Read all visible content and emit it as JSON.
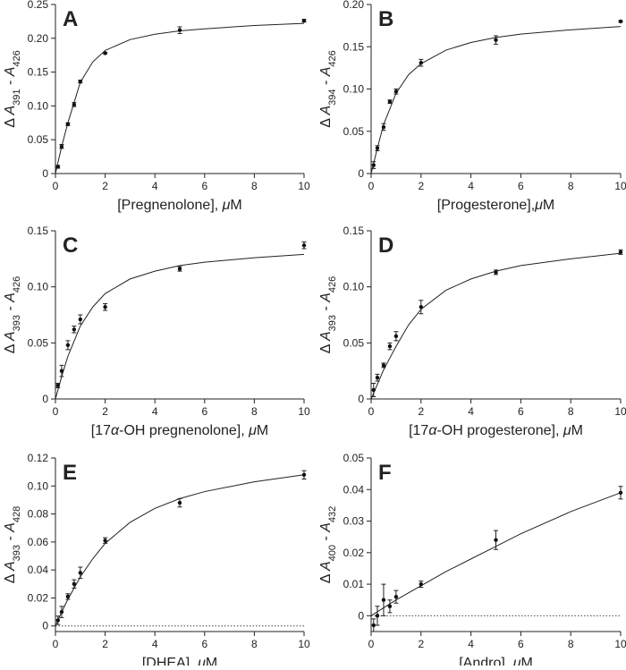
{
  "chart_data": [
    {
      "type": "scatter",
      "label": "A",
      "xlabel": [
        {
          "text": "[Pregnenolone], "
        },
        {
          "text": "μ",
          "italic": true
        },
        {
          "text": "M"
        }
      ],
      "ylabel": [
        {
          "text": "Δ "
        },
        {
          "text": "A",
          "italic": true
        },
        {
          "text": "391",
          "sub": true
        },
        {
          "text": " - "
        },
        {
          "text": "A",
          "italic": true
        },
        {
          "text": "426",
          "sub": true
        }
      ],
      "x": [
        0.1,
        0.25,
        0.5,
        0.75,
        1,
        2,
        5,
        10
      ],
      "values": [
        0.01,
        0.04,
        0.073,
        0.102,
        0.136,
        0.178,
        0.212,
        0.226
      ],
      "errors": [
        0.002,
        0.003,
        0.002,
        0.003,
        0.002,
        0.001,
        0.005,
        0.002
      ],
      "fit": {
        "x": [
          0,
          0.25,
          0.5,
          1,
          1.5,
          2,
          3,
          4,
          5,
          6,
          8,
          10
        ],
        "y": [
          0,
          0.04,
          0.075,
          0.135,
          0.165,
          0.182,
          0.198,
          0.206,
          0.211,
          0.214,
          0.219,
          0.222
        ]
      },
      "xlim": [
        0,
        10
      ],
      "xticks": [
        0,
        2,
        4,
        6,
        8,
        10
      ],
      "ylim": [
        0,
        0.25
      ],
      "yticks": [
        0,
        0.05,
        {
          "value": 0.1,
          "label": "0.10"
        },
        0.15,
        {
          "value": 0.2,
          "label": "0.20"
        },
        0.25
      ],
      "zero_line": false
    },
    {
      "type": "scatter",
      "label": "B",
      "xlabel": [
        {
          "text": "[Progesterone],"
        },
        {
          "text": "μ",
          "italic": true
        },
        {
          "text": "M"
        }
      ],
      "ylabel": [
        {
          "text": "Δ "
        },
        {
          "text": "A",
          "italic": true
        },
        {
          "text": "394",
          "sub": true
        },
        {
          "text": " - "
        },
        {
          "text": "A",
          "italic": true
        },
        {
          "text": "426",
          "sub": true
        }
      ],
      "x": [
        0.1,
        0.25,
        0.5,
        0.75,
        1,
        2,
        5,
        10
      ],
      "values": [
        0.01,
        0.03,
        0.055,
        0.085,
        0.097,
        0.131,
        0.158,
        0.18
      ],
      "errors": [
        0.004,
        0.003,
        0.004,
        0.002,
        0.003,
        0.004,
        0.005,
        0.001
      ],
      "fit": {
        "x": [
          0,
          0.25,
          0.5,
          1,
          1.5,
          2,
          3,
          4,
          5,
          6,
          8,
          10
        ],
        "y": [
          0,
          0.03,
          0.058,
          0.095,
          0.117,
          0.13,
          0.146,
          0.155,
          0.161,
          0.165,
          0.17,
          0.174
        ]
      },
      "xlim": [
        0,
        10
      ],
      "xticks": [
        0,
        2,
        4,
        6,
        8,
        10
      ],
      "ylim": [
        0,
        0.2
      ],
      "yticks": [
        0,
        0.05,
        {
          "value": 0.1,
          "label": "0.10"
        },
        0.15,
        {
          "value": 0.2,
          "label": "0.20"
        }
      ],
      "zero_line": false
    },
    {
      "type": "scatter",
      "label": "C",
      "xlabel": [
        {
          "text": "[17"
        },
        {
          "text": "α",
          "italic": true
        },
        {
          "text": "-OH pregnenolone], "
        },
        {
          "text": "μ",
          "italic": true
        },
        {
          "text": "M"
        }
      ],
      "ylabel": [
        {
          "text": "Δ "
        },
        {
          "text": "A",
          "italic": true
        },
        {
          "text": "393",
          "sub": true
        },
        {
          "text": " - "
        },
        {
          "text": "A",
          "italic": true
        },
        {
          "text": "426",
          "sub": true
        }
      ],
      "x": [
        0.1,
        0.25,
        0.5,
        0.75,
        1,
        2,
        5,
        10
      ],
      "values": [
        0.012,
        0.025,
        0.048,
        0.062,
        0.071,
        0.082,
        0.116,
        0.137
      ],
      "errors": [
        0.002,
        0.005,
        0.004,
        0.003,
        0.004,
        0.003,
        0.002,
        0.003
      ],
      "fit": {
        "x": [
          0,
          0.25,
          0.5,
          1,
          1.5,
          2,
          3,
          4,
          5,
          6,
          8,
          10
        ],
        "y": [
          0,
          0.02,
          0.038,
          0.065,
          0.082,
          0.094,
          0.107,
          0.114,
          0.119,
          0.122,
          0.126,
          0.129
        ]
      },
      "xlim": [
        0,
        10
      ],
      "xticks": [
        0,
        2,
        4,
        6,
        8,
        10
      ],
      "ylim": [
        0,
        0.15
      ],
      "yticks": [
        0,
        0.05,
        {
          "value": 0.1,
          "label": "0.10"
        },
        0.15
      ],
      "zero_line": false
    },
    {
      "type": "scatter",
      "label": "D",
      "xlabel": [
        {
          "text": "[17"
        },
        {
          "text": "α",
          "italic": true
        },
        {
          "text": "-OH progesterone], "
        },
        {
          "text": "μ",
          "italic": true
        },
        {
          "text": "M"
        }
      ],
      "ylabel": [
        {
          "text": "Δ "
        },
        {
          "text": "A",
          "italic": true
        },
        {
          "text": "393",
          "sub": true
        },
        {
          "text": " - "
        },
        {
          "text": "A",
          "italic": true
        },
        {
          "text": "426",
          "sub": true
        }
      ],
      "x": [
        0.1,
        0.25,
        0.5,
        0.75,
        1,
        2,
        5,
        10
      ],
      "values": [
        0.008,
        0.019,
        0.03,
        0.047,
        0.056,
        0.082,
        0.113,
        0.131
      ],
      "errors": [
        0.006,
        0.003,
        0.002,
        0.003,
        0.004,
        0.006,
        0.002,
        0.002
      ],
      "fit": {
        "x": [
          0,
          0.25,
          0.5,
          1,
          1.5,
          2,
          3,
          4,
          5,
          6,
          8,
          10
        ],
        "y": [
          0,
          0.013,
          0.026,
          0.047,
          0.066,
          0.08,
          0.097,
          0.107,
          0.114,
          0.119,
          0.125,
          0.13
        ]
      },
      "xlim": [
        0,
        10
      ],
      "xticks": [
        0,
        2,
        4,
        6,
        8,
        10
      ],
      "ylim": [
        0,
        0.15
      ],
      "yticks": [
        0,
        0.05,
        {
          "value": 0.1,
          "label": "0.10"
        },
        0.15
      ],
      "zero_line": false
    },
    {
      "type": "scatter",
      "label": "E",
      "xlabel": [
        {
          "text": "[DHEA], "
        },
        {
          "text": "μ",
          "italic": true
        },
        {
          "text": "M"
        }
      ],
      "ylabel": [
        {
          "text": "Δ "
        },
        {
          "text": "A",
          "italic": true
        },
        {
          "text": "393",
          "sub": true
        },
        {
          "text": " - "
        },
        {
          "text": "A",
          "italic": true
        },
        {
          "text": "428",
          "sub": true
        }
      ],
      "x": [
        0.1,
        0.25,
        0.5,
        0.75,
        1,
        2,
        5,
        10
      ],
      "values": [
        0.004,
        0.01,
        0.021,
        0.03,
        0.038,
        0.061,
        0.088,
        0.108
      ],
      "errors": [
        0.003,
        0.004,
        0.002,
        0.003,
        0.004,
        0.002,
        0.003,
        0.003
      ],
      "fit": {
        "x": [
          0,
          0.25,
          0.5,
          1,
          1.5,
          2,
          3,
          4,
          5,
          6,
          8,
          10
        ],
        "y": [
          0,
          0.01,
          0.019,
          0.035,
          0.048,
          0.059,
          0.074,
          0.084,
          0.091,
          0.096,
          0.103,
          0.108
        ]
      },
      "xlim": [
        0,
        10
      ],
      "xticks": [
        0,
        2,
        4,
        6,
        8,
        10
      ],
      "ylim": [
        -0.004,
        0.12
      ],
      "yticks": [
        0,
        0.02,
        0.04,
        0.06,
        0.08,
        {
          "value": 0.1,
          "label": "0.10"
        },
        0.12
      ],
      "zero_line": true
    },
    {
      "type": "scatter",
      "label": "F",
      "xlabel": [
        {
          "text": "[Andro], "
        },
        {
          "text": "μ",
          "italic": true
        },
        {
          "text": "M"
        }
      ],
      "ylabel": [
        {
          "text": "Δ "
        },
        {
          "text": "A",
          "italic": true
        },
        {
          "text": "400",
          "sub": true
        },
        {
          "text": " - "
        },
        {
          "text": "A",
          "italic": true
        },
        {
          "text": "432",
          "sub": true
        }
      ],
      "x": [
        0.1,
        0.25,
        0.5,
        0.75,
        1,
        2,
        5,
        10
      ],
      "values": [
        -0.003,
        0,
        0.005,
        0.003,
        0.006,
        0.01,
        0.024,
        0.039
      ],
      "errors": [
        0.002,
        0.003,
        0.005,
        0.002,
        0.002,
        0.001,
        0.003,
        0.002
      ],
      "fit": {
        "x": [
          0,
          1,
          2,
          3,
          4,
          5,
          6,
          8,
          10
        ],
        "y": [
          0,
          0.005,
          0.0095,
          0.014,
          0.018,
          0.022,
          0.026,
          0.033,
          0.039
        ]
      },
      "xlim": [
        0,
        10
      ],
      "xticks": [
        0,
        2,
        4,
        6,
        8,
        10
      ],
      "ylim": [
        -0.005,
        0.05
      ],
      "yticks": [
        0,
        0.01,
        0.02,
        0.03,
        0.04,
        0.05
      ],
      "zero_line": true
    }
  ]
}
